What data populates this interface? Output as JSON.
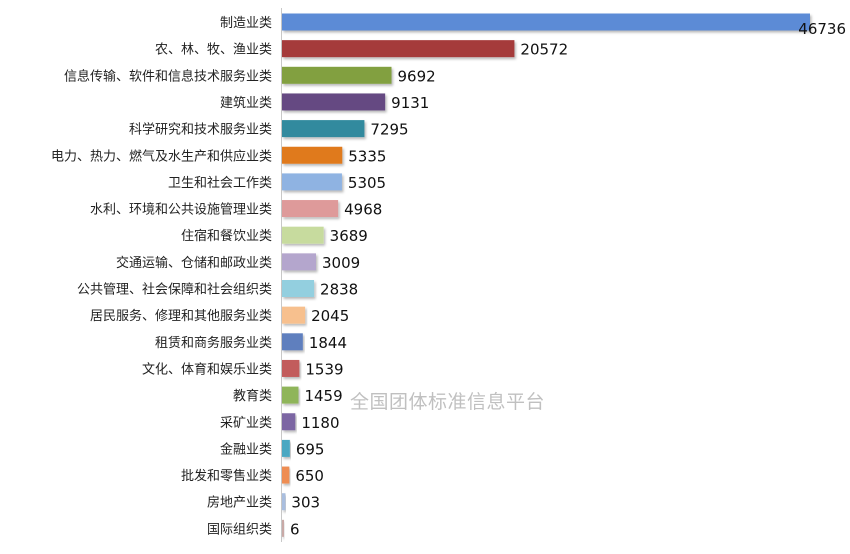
{
  "chart_data": {
    "type": "bar",
    "orientation": "horizontal",
    "title": "",
    "xlabel": "",
    "ylabel": "",
    "grid": false,
    "xlim": [
      0,
      46736
    ],
    "categories": [
      "制造业类",
      "农、林、牧、渔业类",
      "信息传输、软件和信息技术服务业类",
      "建筑业类",
      "科学研究和技术服务业类",
      "电力、热力、燃气及水生产和供应业类",
      "卫生和社会工作类",
      "水利、环境和公共设施管理业类",
      "住宿和餐饮业类",
      "交通运输、仓储和邮政业类",
      "公共管理、社会保障和社会组织类",
      "居民服务、修理和其他服务业类",
      "租赁和商务服务业类",
      "文化、体育和娱乐业类",
      "教育类",
      "采矿业类",
      "金融业类",
      "批发和零售业类",
      "房地产业类",
      "国际组织类"
    ],
    "values": [
      46736,
      20572,
      9692,
      9131,
      7295,
      5335,
      5305,
      4968,
      3689,
      3009,
      2838,
      2045,
      1844,
      1539,
      1459,
      1180,
      695,
      650,
      303,
      6
    ],
    "colors": [
      "#5B8BD6",
      "#A53A3A",
      "#82A03F",
      "#654A82",
      "#318A9E",
      "#E07A1E",
      "#8FB3E2",
      "#DE9A9A",
      "#C7DB9E",
      "#B4A6CD",
      "#93CFDF",
      "#F7C08E",
      "#5F7FBE",
      "#C25B5B",
      "#8FB55A",
      "#7B66A3",
      "#4CA8C2",
      "#EE8D52",
      "#A9BEDF",
      "#C9A9A6"
    ]
  },
  "watermark": "全国团体标准信息平台"
}
